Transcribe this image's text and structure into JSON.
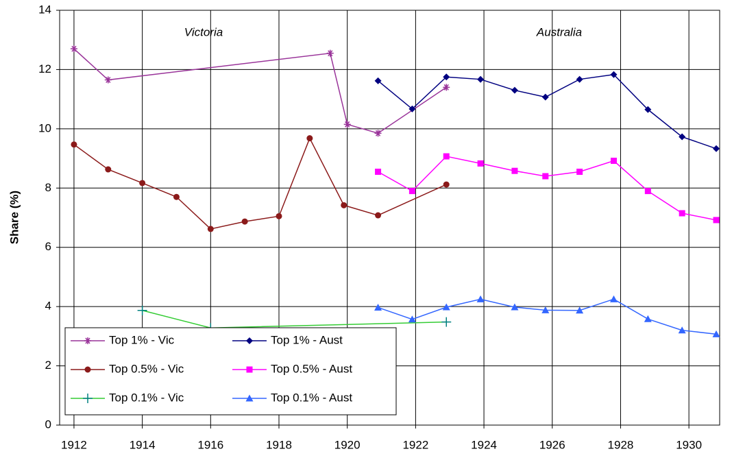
{
  "chart_data": {
    "type": "line",
    "ylabel": "Share (%)",
    "annotations": [
      "Victoria",
      "Australia"
    ],
    "xlim": [
      1911.58,
      1930.9
    ],
    "xticks": [
      1912,
      1914,
      1916,
      1918,
      1920,
      1922,
      1924,
      1926,
      1928,
      1930
    ],
    "ylim": [
      0,
      14
    ],
    "yticks": [
      0,
      2,
      4,
      6,
      8,
      10,
      12,
      14
    ],
    "grid": true,
    "legend": "lower left",
    "series": [
      {
        "name": "Top 1% - Vic",
        "color": "#993399",
        "marker": "asterisk",
        "x": [
          1912,
          1913,
          1919.5,
          1920,
          1920.9,
          1922.9
        ],
        "values": [
          12.7,
          11.65,
          12.55,
          10.15,
          9.85,
          11.4
        ]
      },
      {
        "name": "Top 1% - Aust",
        "color": "#000080",
        "marker": "diamond",
        "x": [
          1920.9,
          1921.9,
          1922.9,
          1923.9,
          1924.9,
          1925.8,
          1926.8,
          1927.8,
          1928.8,
          1929.8,
          1930.8
        ],
        "values": [
          11.62,
          10.67,
          11.75,
          11.67,
          11.3,
          11.07,
          11.67,
          11.83,
          10.65,
          9.73,
          9.33
        ]
      },
      {
        "name": "Top 0.5% - Vic",
        "color": "#8B1A1A",
        "marker": "circle",
        "x": [
          1912,
          1913,
          1914,
          1915,
          1916,
          1917,
          1918,
          1918.9,
          1919.9,
          1920.9,
          1922.9
        ],
        "values": [
          9.47,
          8.63,
          8.17,
          7.7,
          6.62,
          6.87,
          7.05,
          9.68,
          7.42,
          7.08,
          8.12
        ]
      },
      {
        "name": "Top 0.5% - Aust",
        "color": "#FF00FF",
        "marker": "square",
        "x": [
          1920.9,
          1921.9,
          1922.9,
          1923.9,
          1924.9,
          1925.8,
          1926.8,
          1927.8,
          1928.8,
          1929.8,
          1930.8
        ],
        "values": [
          8.55,
          7.9,
          9.07,
          8.83,
          8.58,
          8.4,
          8.55,
          8.92,
          7.9,
          7.15,
          6.92
        ]
      },
      {
        "name": "Top 0.1% - Vic",
        "color": "#33CC33",
        "marker": "plus",
        "x": [
          1914,
          1916,
          1922.9
        ],
        "values": [
          3.87,
          3.28,
          3.48
        ]
      },
      {
        "name": "Top 0.1% - Aust",
        "color": "#3366FF",
        "marker": "triangle",
        "x": [
          1920.9,
          1921.9,
          1922.9,
          1923.9,
          1924.9,
          1925.8,
          1926.8,
          1927.8,
          1928.8,
          1929.8,
          1930.8
        ],
        "values": [
          3.97,
          3.57,
          3.98,
          4.25,
          3.98,
          3.88,
          3.87,
          4.25,
          3.58,
          3.2,
          3.07
        ]
      }
    ]
  }
}
